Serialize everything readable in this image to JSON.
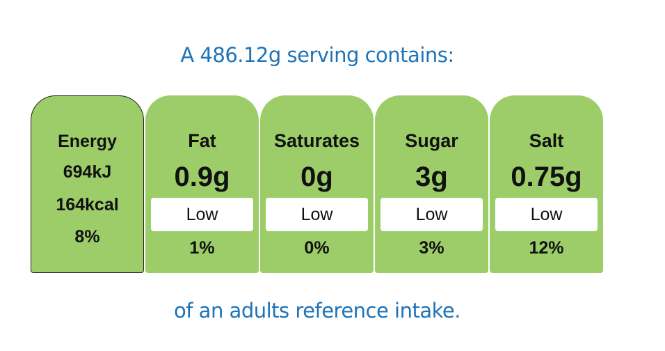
{
  "header": {
    "title": "A 486.12g serving contains:"
  },
  "energy": {
    "label": "Energy",
    "kj": "694kJ",
    "kcal": "164kcal",
    "percent": "8%"
  },
  "nutrients": [
    {
      "name": "Fat",
      "amount": "0.9g",
      "level": "Low",
      "percent": "1%"
    },
    {
      "name": "Saturates",
      "amount": "0g",
      "level": "Low",
      "percent": "0%"
    },
    {
      "name": "Sugar",
      "amount": "3g",
      "level": "Low",
      "percent": "3%"
    },
    {
      "name": "Salt",
      "amount": "0.75g",
      "level": "Low",
      "percent": "12%"
    }
  ],
  "footer": {
    "text": "of an adults reference intake."
  }
}
